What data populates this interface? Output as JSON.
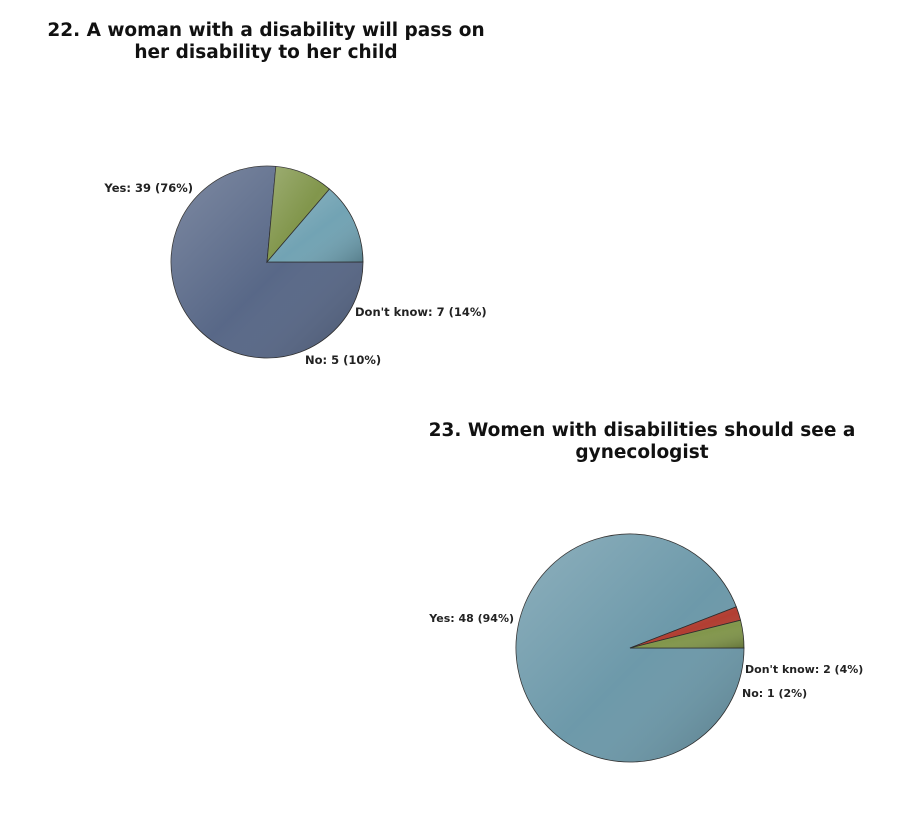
{
  "chart_data": [
    {
      "type": "pie",
      "title": "22. A woman with a disability will pass on her disability to her child",
      "title_lines": [
        "22. A woman with a disability will pass on",
        "her disability to her child"
      ],
      "slices": [
        {
          "label": "Yes: 39 (76%)",
          "category": "Yes",
          "value": 39,
          "percent": 76,
          "color": "#556585"
        },
        {
          "label": "No: 5 (10%)",
          "category": "No",
          "value": 5,
          "percent": 10,
          "color": "#7f9448"
        },
        {
          "label": "Don't know: 7 (14%)",
          "category": "Don't know",
          "value": 7,
          "percent": 14,
          "color": "#6fa1b2"
        }
      ]
    },
    {
      "type": "pie",
      "title": "23. Women with disabilities should see a gynecologist",
      "title_lines": [
        "23. Women with disabilities should see a",
        "gynecologist"
      ],
      "slices": [
        {
          "label": "Yes: 48 (94%)",
          "category": "Yes",
          "value": 48,
          "percent": 94,
          "color": "#6a97a8"
        },
        {
          "label": "No: 1 (2%)",
          "category": "No",
          "value": 1,
          "percent": 2,
          "color": "#b03a2e"
        },
        {
          "label": "Don't know: 2 (4%)",
          "category": "Don't know",
          "value": 2,
          "percent": 4,
          "color": "#7f9448"
        }
      ]
    }
  ]
}
